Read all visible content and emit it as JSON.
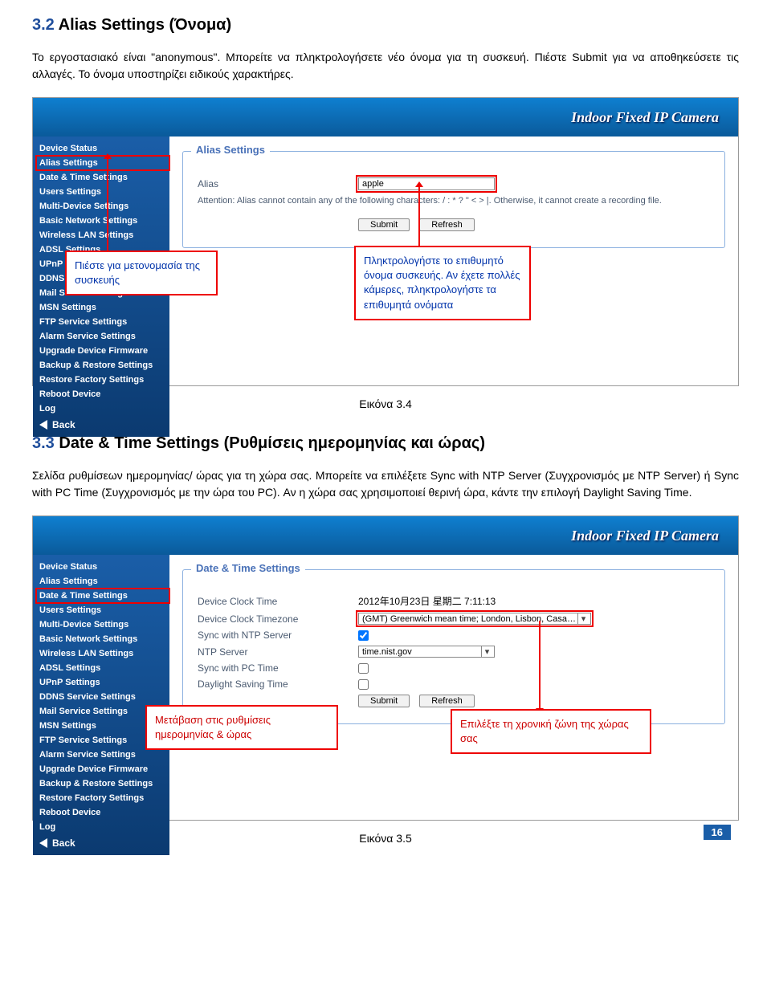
{
  "section32": {
    "number": "3.2",
    "title": "Alias Settings (Όνομα)",
    "para": "Το εργοστασιακό είναι \"anonymous\". Μπορείτε να πληκτρολογήσετε νέο όνομα για τη συσκευή. Πιέστε Submit για να αποθηκεύσετε τις αλλαγές. Το όνομα υποστηρίζει ειδικούς χαρακτήρες."
  },
  "banner": "Indoor Fixed IP Camera",
  "sidebar": [
    "Device Status",
    "Alias Settings",
    "Date & Time Settings",
    "Users Settings",
    "Multi-Device Settings",
    "Basic Network Settings",
    "Wireless LAN Settings",
    "ADSL Settings",
    "UPnP Settings",
    "DDNS Service Settings",
    "Mail Service Settings",
    "MSN Settings",
    "FTP Service Settings",
    "Alarm Service Settings",
    "Upgrade Device Firmware",
    "Backup & Restore Settings",
    "Restore Factory Settings",
    "Reboot Device",
    "Log"
  ],
  "back": "Back",
  "shot1": {
    "legend": "Alias Settings",
    "alias_label": "Alias",
    "alias_value": "apple",
    "attention": "Attention: Alias cannot contain any of the following characters: / : * ? \" < > |. Otherwise, it cannot create a recording file.",
    "submit": "Submit",
    "refresh": "Refresh"
  },
  "callout_left1": "Πιέστε για μετονομασία της συσκευής",
  "callout_right1": "Πληκτρολογήστε το επιθυμητό όνομα συσκευής. Αν έχετε πολλές κάμερες, πληκτρολογήστε τα επιθυμητά ονόματα",
  "caption1": "Εικόνα 3.4",
  "section33": {
    "number": "3.3",
    "title": "Date & Time Settings (Ρυθμίσεις ημερομηνίας και ώρας)",
    "para": "Σελίδα ρυθμίσεων ημερομηνίας/ ώρας για τη χώρα σας. Μπορείτε να επιλέξετε Sync with NTP Server (Συγχρονισμός με NTP Server) ή Sync with PC Time (Συγχρονισμός με την ώρα του PC). Αν η χώρα σας χρησιμοποιεί θερινή ώρα, κάντε την επιλογή Daylight Saving Time."
  },
  "shot2": {
    "legend": "Date & Time Settings",
    "rows": {
      "clock_label": "Device Clock Time",
      "clock_value": "2012年10月23日 星期二 7:11:13",
      "tz_label": "Device Clock Timezone",
      "tz_value": "(GMT) Greenwich mean time; London, Lisbon, Casablan",
      "ntp_sync_label": "Sync with NTP Server",
      "ntp_server_label": "NTP Server",
      "ntp_server_value": "time.nist.gov",
      "pc_sync_label": "Sync with PC Time",
      "dst_label": "Daylight Saving Time"
    },
    "submit": "Submit",
    "refresh": "Refresh"
  },
  "callout_left2": "Μετάβαση στις ρυθμίσεις ημερομηνίας & ώρας",
  "callout_right2": "Επιλέξτε τη χρονική ζώνη της χώρας σας",
  "caption2": "Εικόνα 3.5",
  "page_number": "16"
}
